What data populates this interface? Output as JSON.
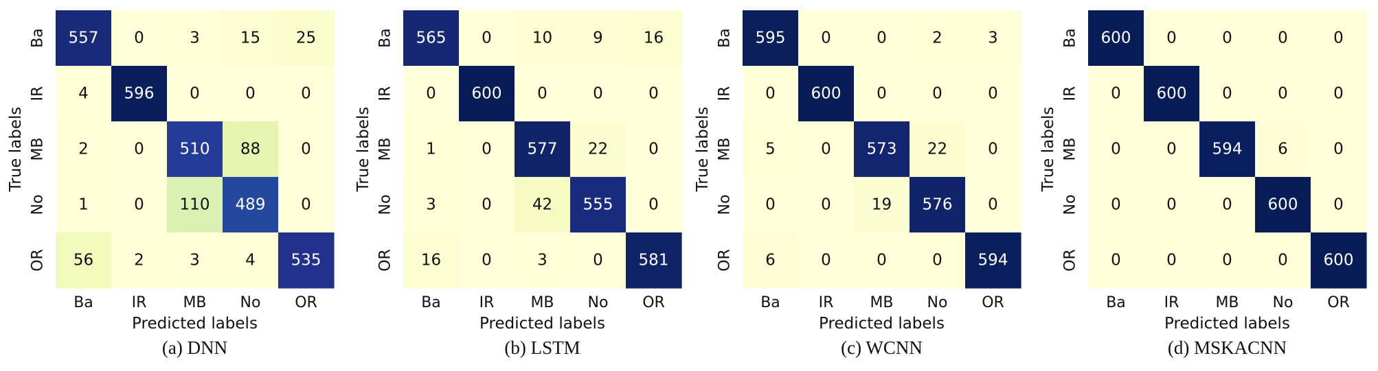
{
  "chart_data": [
    {
      "type": "heatmap",
      "caption": "(a) DNN",
      "xlabel": "Predicted labels",
      "ylabel": "True labels",
      "x_categories": [
        "Ba",
        "IR",
        "MB",
        "No",
        "OR"
      ],
      "y_categories": [
        "Ba",
        "IR",
        "MB",
        "No",
        "OR"
      ],
      "values": [
        [
          557,
          0,
          3,
          15,
          25
        ],
        [
          4,
          596,
          0,
          0,
          0
        ],
        [
          2,
          0,
          510,
          88,
          0
        ],
        [
          1,
          0,
          110,
          489,
          0
        ],
        [
          56,
          2,
          3,
          4,
          535
        ]
      ],
      "value_range": [
        0,
        600
      ],
      "colormap": "YlGnBu"
    },
    {
      "type": "heatmap",
      "caption": "(b) LSTM",
      "xlabel": "Predicted labels",
      "ylabel": "True labels",
      "x_categories": [
        "Ba",
        "IR",
        "MB",
        "No",
        "OR"
      ],
      "y_categories": [
        "Ba",
        "IR",
        "MB",
        "No",
        "OR"
      ],
      "values": [
        [
          565,
          0,
          10,
          9,
          16
        ],
        [
          0,
          600,
          0,
          0,
          0
        ],
        [
          1,
          0,
          577,
          22,
          0
        ],
        [
          3,
          0,
          42,
          555,
          0
        ],
        [
          16,
          0,
          3,
          0,
          581
        ]
      ],
      "value_range": [
        0,
        600
      ],
      "colormap": "YlGnBu"
    },
    {
      "type": "heatmap",
      "caption": "(c) WCNN",
      "xlabel": "Predicted labels",
      "ylabel": "True labels",
      "x_categories": [
        "Ba",
        "IR",
        "MB",
        "No",
        "OR"
      ],
      "y_categories": [
        "Ba",
        "IR",
        "MB",
        "No",
        "OR"
      ],
      "values": [
        [
          595,
          0,
          0,
          2,
          3
        ],
        [
          0,
          600,
          0,
          0,
          0
        ],
        [
          5,
          0,
          573,
          22,
          0
        ],
        [
          0,
          0,
          19,
          576,
          0
        ],
        [
          6,
          0,
          0,
          0,
          594
        ]
      ],
      "value_range": [
        0,
        600
      ],
      "colormap": "YlGnBu"
    },
    {
      "type": "heatmap",
      "caption": "(d) MSKACNN",
      "xlabel": "Predicted labels",
      "ylabel": "True labels",
      "x_categories": [
        "Ba",
        "IR",
        "MB",
        "No",
        "OR"
      ],
      "y_categories": [
        "Ba",
        "IR",
        "MB",
        "No",
        "OR"
      ],
      "values": [
        [
          600,
          0,
          0,
          0,
          0
        ],
        [
          0,
          600,
          0,
          0,
          0
        ],
        [
          0,
          0,
          594,
          6,
          0
        ],
        [
          0,
          0,
          0,
          600,
          0
        ],
        [
          0,
          0,
          0,
          0,
          600
        ]
      ],
      "value_range": [
        0,
        600
      ],
      "colormap": "YlGnBu"
    }
  ]
}
